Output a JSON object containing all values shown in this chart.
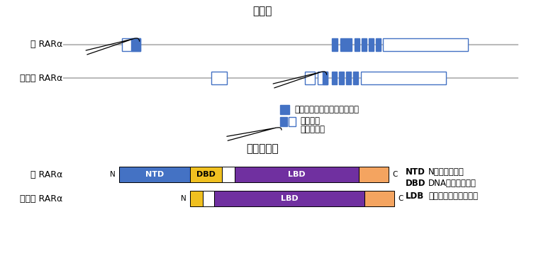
{
  "title_gene": "遺伝子",
  "title_protein": "タンパク質",
  "label_kaku": "核 RARα",
  "label_saibo": "細胞質 RARα",
  "gene_line_color": "#bbbbbb",
  "exon_outline_color": "#4472c4",
  "exon_fill_color": "#4472c4",
  "exon_empty_color": "#ffffff",
  "legend_filled_label": "タンパク質をコードする領域",
  "legend_exon_label": "エクソン",
  "legend_arrow_label": "転写開始点",
  "ntd_color": "#4472c4",
  "dbd_color": "#f0c020",
  "lbd_color": "#7030a0",
  "cterm_color": "#f4a460",
  "white_color": "#ffffff",
  "ntd_label": "NTD",
  "dbd_label": "DBD",
  "lbd_label": "LBD",
  "legend_ntd_key": "NTD",
  "legend_ntd_val": "N末端ドメイン",
  "legend_dbd_key": "DBD",
  "legend_dbd_val": "DNA結合ドメイン",
  "legend_ldb_key": "LDB",
  "legend_ldb_val": "リガンド結合ドメイン",
  "bg_color": "#ffffff"
}
